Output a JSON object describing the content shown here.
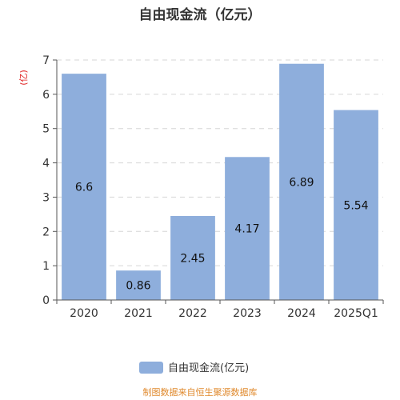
{
  "chart_data": {
    "type": "bar",
    "title": "自由现金流（亿元）",
    "categories": [
      "2020",
      "2021",
      "2022",
      "2023",
      "2024",
      "2025Q1"
    ],
    "series": [
      {
        "name": "自由现金流(亿元)",
        "values": [
          6.6,
          0.86,
          2.45,
          4.17,
          6.89,
          5.54
        ]
      }
    ],
    "data_labels": [
      "6.6",
      "0.86",
      "2.45",
      "4.17",
      "6.89",
      "5.54"
    ],
    "ylabel": "(亿)",
    "ylim": [
      0,
      7
    ],
    "yticks": [
      0,
      1,
      2,
      3,
      4,
      5,
      6,
      7
    ],
    "grid": true,
    "legend_position": "bottom"
  },
  "legend": {
    "label": "自由现金流(亿元)"
  },
  "source_note": "制图数据来自恒生聚源数据库",
  "colors": {
    "bar": "#8eaedc",
    "y_unit": "#e02020",
    "source_note": "#e08a2e",
    "grid": "#d6d6d6",
    "axis": "#555555"
  }
}
